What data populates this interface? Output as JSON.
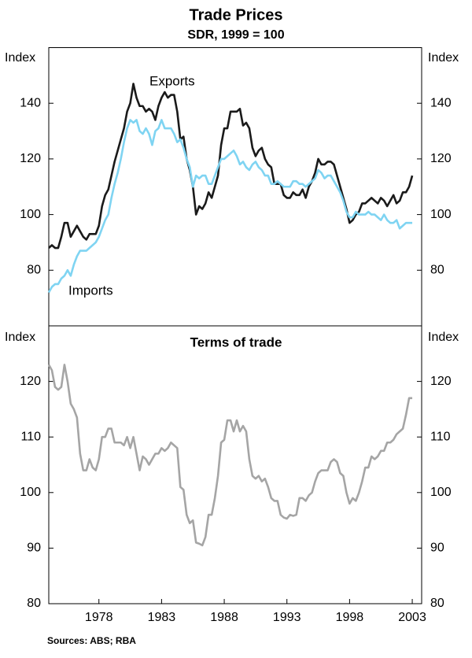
{
  "chart_data": [
    {
      "type": "line",
      "title": "Trade Prices",
      "subtitle": "SDR, 1999 = 100",
      "ylabel": "Index",
      "y2label": "Index",
      "xlim": [
        1974,
        2003.75
      ],
      "ylim": [
        60,
        160
      ],
      "yticks": [
        80,
        100,
        120,
        140
      ],
      "y2lim": [
        60,
        160
      ],
      "y2ticks": [
        80,
        100,
        120,
        140
      ],
      "x": [
        1974,
        1974.25,
        1974.5,
        1974.75,
        1975,
        1975.25,
        1975.5,
        1975.75,
        1976,
        1976.25,
        1976.5,
        1976.75,
        1977,
        1977.25,
        1977.5,
        1977.75,
        1978,
        1978.25,
        1978.5,
        1978.75,
        1979,
        1979.25,
        1979.5,
        1979.75,
        1980,
        1980.25,
        1980.5,
        1980.75,
        1981,
        1981.25,
        1981.5,
        1981.75,
        1982,
        1982.25,
        1982.5,
        1982.75,
        1983,
        1983.25,
        1983.5,
        1983.75,
        1984,
        1984.25,
        1984.5,
        1984.75,
        1985,
        1985.25,
        1985.5,
        1985.75,
        1986,
        1986.25,
        1986.5,
        1986.75,
        1987,
        1987.25,
        1987.5,
        1987.75,
        1988,
        1988.25,
        1988.5,
        1988.75,
        1989,
        1989.25,
        1989.5,
        1989.75,
        1990,
        1990.25,
        1990.5,
        1990.75,
        1991,
        1991.25,
        1991.5,
        1991.75,
        1992,
        1992.25,
        1992.5,
        1992.75,
        1993,
        1993.25,
        1993.5,
        1993.75,
        1994,
        1994.25,
        1994.5,
        1994.75,
        1995,
        1995.25,
        1995.5,
        1995.75,
        1996,
        1996.25,
        1996.5,
        1996.75,
        1997,
        1997.25,
        1997.5,
        1997.75,
        1998,
        1998.25,
        1998.5,
        1998.75,
        1999,
        1999.25,
        1999.5,
        1999.75,
        2000,
        2000.25,
        2000.5,
        2000.75,
        2001,
        2001.25,
        2001.5,
        2001.75,
        2002,
        2002.25,
        2002.5,
        2002.75,
        2003
      ],
      "series": [
        {
          "name": "Exports",
          "color": "#1a1a1a",
          "values": [
            88,
            89,
            88,
            88,
            92,
            97,
            97,
            92,
            94,
            96,
            94,
            92,
            91,
            93,
            93,
            93,
            96,
            103,
            107,
            109,
            114,
            119,
            123,
            127,
            131,
            137,
            140,
            147,
            142,
            139,
            139,
            137,
            138,
            137,
            134,
            139,
            142,
            144,
            142,
            143,
            143,
            137,
            127,
            128,
            120,
            116,
            110,
            100,
            103,
            102,
            104,
            108,
            106,
            110,
            114,
            125,
            131,
            131,
            137,
            137,
            137,
            138,
            132,
            133,
            131,
            124,
            121,
            123,
            124,
            120,
            118,
            117,
            111,
            111,
            111,
            107,
            106,
            106,
            108,
            107,
            107,
            109,
            106,
            110,
            112,
            115,
            120,
            118,
            118,
            119,
            119,
            118,
            114,
            110,
            106,
            102,
            97,
            98,
            100,
            101,
            104,
            104,
            105,
            106,
            105,
            104,
            106,
            105,
            103,
            105,
            107,
            104,
            105,
            108,
            108,
            110,
            114
          ]
        },
        {
          "name": "Imports",
          "color": "#7fd4f2",
          "values": [
            72,
            74,
            75,
            75,
            77,
            78,
            80,
            78,
            82,
            85,
            87,
            87,
            87,
            88,
            89,
            90,
            92,
            95,
            98,
            100,
            106,
            111,
            115,
            120,
            126,
            131,
            134,
            133,
            134,
            130,
            129,
            131,
            129,
            125,
            130,
            131,
            134,
            131,
            131,
            131,
            129,
            126,
            127,
            124,
            120,
            117,
            110,
            114,
            113,
            114,
            114,
            111,
            111,
            114,
            117,
            120,
            120,
            121,
            122,
            123,
            121,
            118,
            119,
            117,
            116,
            118,
            119,
            117,
            116,
            114,
            114,
            111,
            111,
            112,
            111,
            110,
            110,
            110,
            112,
            112,
            111,
            111,
            110,
            111,
            112,
            113,
            116,
            115,
            113,
            114,
            114,
            112,
            110,
            108,
            105,
            101,
            99,
            99,
            101,
            100,
            100,
            100,
            101,
            100,
            100,
            99,
            98,
            100,
            98,
            97,
            97,
            98,
            95,
            96,
            97,
            97,
            97
          ]
        }
      ]
    },
    {
      "type": "line",
      "title": "Terms of trade",
      "ylabel": "Index",
      "y2label": "Index",
      "xlim": [
        1974,
        2003.75
      ],
      "xticks": [
        1978,
        1983,
        1988,
        1993,
        1998,
        2003
      ],
      "ylim": [
        80,
        130
      ],
      "yticks": [
        80,
        90,
        100,
        110,
        120
      ],
      "y2lim": [
        80,
        130
      ],
      "y2ticks": [
        80,
        90,
        100,
        110,
        120
      ],
      "x": [
        1974,
        1974.25,
        1974.5,
        1974.75,
        1975,
        1975.25,
        1975.5,
        1975.75,
        1976,
        1976.25,
        1976.5,
        1976.75,
        1977,
        1977.25,
        1977.5,
        1977.75,
        1978,
        1978.25,
        1978.5,
        1978.75,
        1979,
        1979.25,
        1979.5,
        1979.75,
        1980,
        1980.25,
        1980.5,
        1980.75,
        1981,
        1981.25,
        1981.5,
        1981.75,
        1982,
        1982.25,
        1982.5,
        1982.75,
        1983,
        1983.25,
        1983.5,
        1983.75,
        1984,
        1984.25,
        1984.5,
        1984.75,
        1985,
        1985.25,
        1985.5,
        1985.75,
        1986,
        1986.25,
        1986.5,
        1986.75,
        1987,
        1987.25,
        1987.5,
        1987.75,
        1988,
        1988.25,
        1988.5,
        1988.75,
        1989,
        1989.25,
        1989.5,
        1989.75,
        1990,
        1990.25,
        1990.5,
        1990.75,
        1991,
        1991.25,
        1991.5,
        1991.75,
        1992,
        1992.25,
        1992.5,
        1992.75,
        1993,
        1993.25,
        1993.5,
        1993.75,
        1994,
        1994.25,
        1994.5,
        1994.75,
        1995,
        1995.25,
        1995.5,
        1995.75,
        1996,
        1996.25,
        1996.5,
        1996.75,
        1997,
        1997.25,
        1997.5,
        1997.75,
        1998,
        1998.25,
        1998.5,
        1998.75,
        1999,
        1999.25,
        1999.5,
        1999.75,
        2000,
        2000.25,
        2000.5,
        2000.75,
        2001,
        2001.25,
        2001.5,
        2001.75,
        2002,
        2002.25,
        2002.5,
        2002.75,
        2003
      ],
      "series": [
        {
          "name": "Terms of trade",
          "color": "#a5a5a5",
          "values": [
            123,
            122,
            119,
            118.5,
            119,
            123,
            120,
            116,
            115,
            113.5,
            107,
            104,
            104,
            106,
            104.5,
            104,
            106,
            110,
            110,
            111.5,
            111.5,
            109,
            109,
            109,
            108.5,
            110,
            108,
            110,
            107,
            104,
            106.5,
            106,
            105,
            106,
            107,
            107,
            108,
            107.5,
            108,
            109,
            108.5,
            108,
            101,
            100.5,
            96,
            94.5,
            95,
            91,
            90.8,
            90.5,
            92,
            96,
            96,
            99,
            103,
            109,
            109.5,
            113,
            113,
            111,
            113,
            111,
            112,
            111,
            106,
            103,
            102.5,
            103,
            102,
            102.5,
            101,
            99,
            98.5,
            98.5,
            96,
            95.5,
            95.3,
            96,
            95.8,
            96,
            99,
            99,
            98.5,
            99.5,
            100,
            102,
            103.5,
            104,
            104,
            104,
            105.5,
            106,
            105.5,
            103.5,
            103,
            100,
            98,
            99,
            98.5,
            100,
            102,
            104.5,
            104.5,
            106.5,
            106,
            106.5,
            107.5,
            107.5,
            109,
            109,
            109.5,
            110.5,
            111,
            111.5,
            114,
            117,
            117
          ]
        }
      ]
    }
  ],
  "source": "Sources: ABS; RBA"
}
